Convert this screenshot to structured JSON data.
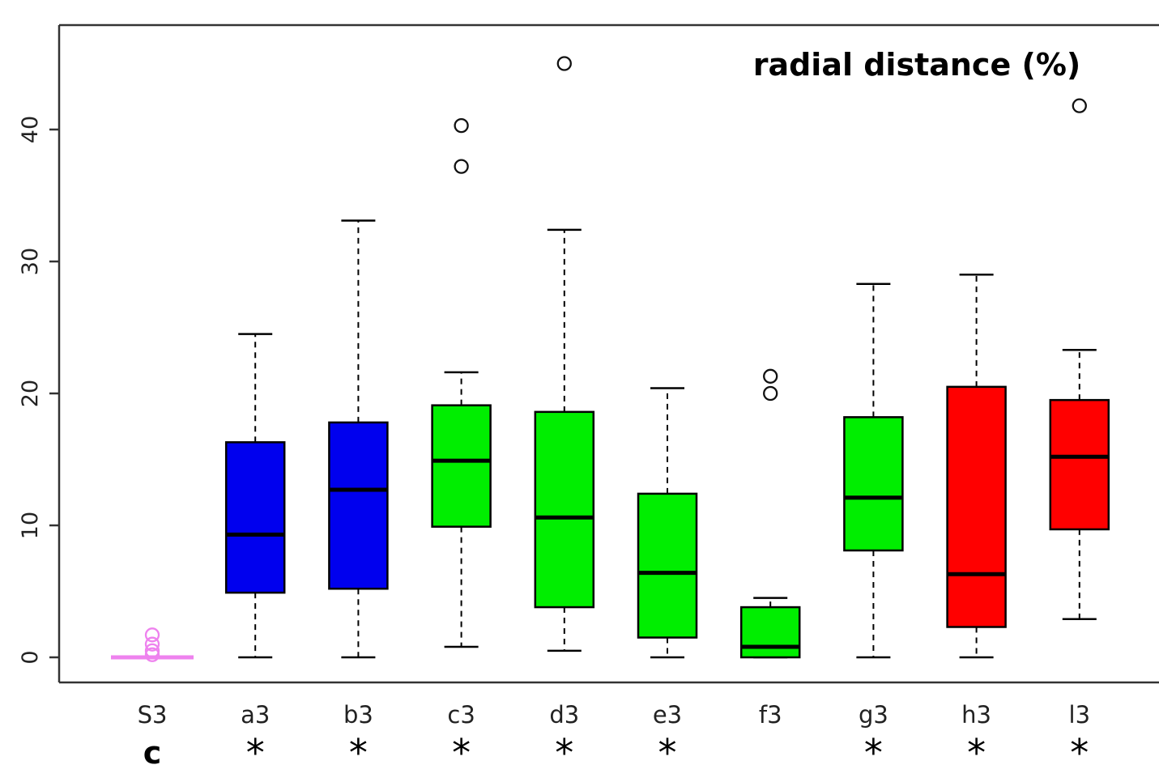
{
  "chart_data": {
    "type": "boxplot",
    "title": "radial distance (%)",
    "xlabel": "",
    "ylabel": "",
    "ylim": [
      -2,
      48
    ],
    "yticks": [
      "0",
      "10",
      "20",
      "30",
      "40"
    ],
    "categories": [
      "S3",
      "a3",
      "b3",
      "c3",
      "d3",
      "e3",
      "f3",
      "g3",
      "h3",
      "l3"
    ],
    "annotations": [
      "c",
      "*",
      "*",
      "*",
      "*",
      "*",
      "",
      "*",
      "*",
      "*"
    ],
    "boxes": [
      {
        "whisker_low": 0,
        "q1": 0,
        "median": 0,
        "q3": 0,
        "whisker_high": 0,
        "outliers": [
          0.2,
          0.5,
          1.0,
          1.7
        ],
        "color": "#ee82ee"
      },
      {
        "whisker_low": 0,
        "q1": 4.9,
        "median": 9.3,
        "q3": 16.3,
        "whisker_high": 24.5,
        "outliers": [],
        "color": "#0000ee"
      },
      {
        "whisker_low": 0,
        "q1": 5.2,
        "median": 12.7,
        "q3": 17.8,
        "whisker_high": 33.1,
        "outliers": [],
        "color": "#0000ee"
      },
      {
        "whisker_low": 0.8,
        "q1": 9.9,
        "median": 14.9,
        "q3": 19.1,
        "whisker_high": 21.6,
        "outliers": [
          37.2,
          40.3
        ],
        "color": "#00ee00"
      },
      {
        "whisker_low": 0.5,
        "q1": 3.8,
        "median": 10.6,
        "q3": 18.6,
        "whisker_high": 32.4,
        "outliers": [
          45.0
        ],
        "color": "#00ee00"
      },
      {
        "whisker_low": 0,
        "q1": 1.5,
        "median": 6.4,
        "q3": 12.4,
        "whisker_high": 20.4,
        "outliers": [],
        "color": "#00ee00"
      },
      {
        "whisker_low": 0,
        "q1": 0,
        "median": 0.8,
        "q3": 3.8,
        "whisker_high": 4.5,
        "outliers": [
          20.0,
          21.3
        ],
        "color": "#00ee00"
      },
      {
        "whisker_low": 0,
        "q1": 8.1,
        "median": 12.1,
        "q3": 18.2,
        "whisker_high": 28.3,
        "outliers": [],
        "color": "#00ee00"
      },
      {
        "whisker_low": 0,
        "q1": 2.3,
        "median": 6.3,
        "q3": 20.5,
        "whisker_high": 29.0,
        "outliers": [],
        "color": "#ff0000"
      },
      {
        "whisker_low": 2.9,
        "q1": 9.7,
        "median": 15.2,
        "q3": 19.5,
        "whisker_high": 23.3,
        "outliers": [
          41.8
        ],
        "color": "#ff0000"
      }
    ],
    "grid": false,
    "legend": "none"
  }
}
